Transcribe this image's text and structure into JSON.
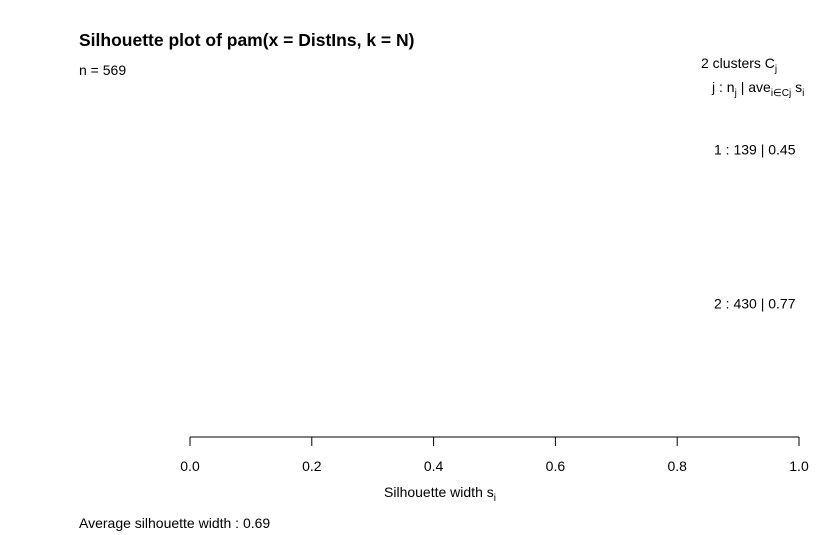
{
  "chart_data": {
    "type": "bar",
    "title": "Silhouette plot of pam(x = DistIns, k = N)",
    "n_label": "n = 569",
    "legend_header": {
      "count_text": "2  clusters  C",
      "count_sub": "j",
      "cols_text_1": "j :  n",
      "cols_sub_1": "j",
      "cols_text_2": " | ave",
      "cols_sub_2": "i∈Cj",
      "cols_text_3": "  s",
      "cols_sub_3": "i"
    },
    "clusters": [
      {
        "label": "1 :   139  |  0.45",
        "size": 139,
        "avg_width": 0.45
      },
      {
        "label": "2 :   430  |  0.77",
        "size": 430,
        "avg_width": 0.77
      }
    ],
    "xlabel": "Silhouette width s",
    "xlabel_sub": "i",
    "xlim": [
      0,
      1
    ],
    "xticks": [
      "0.0",
      "0.2",
      "0.4",
      "0.6",
      "0.8",
      "1.0"
    ],
    "footer": "Average silhouette width :  0.69"
  }
}
